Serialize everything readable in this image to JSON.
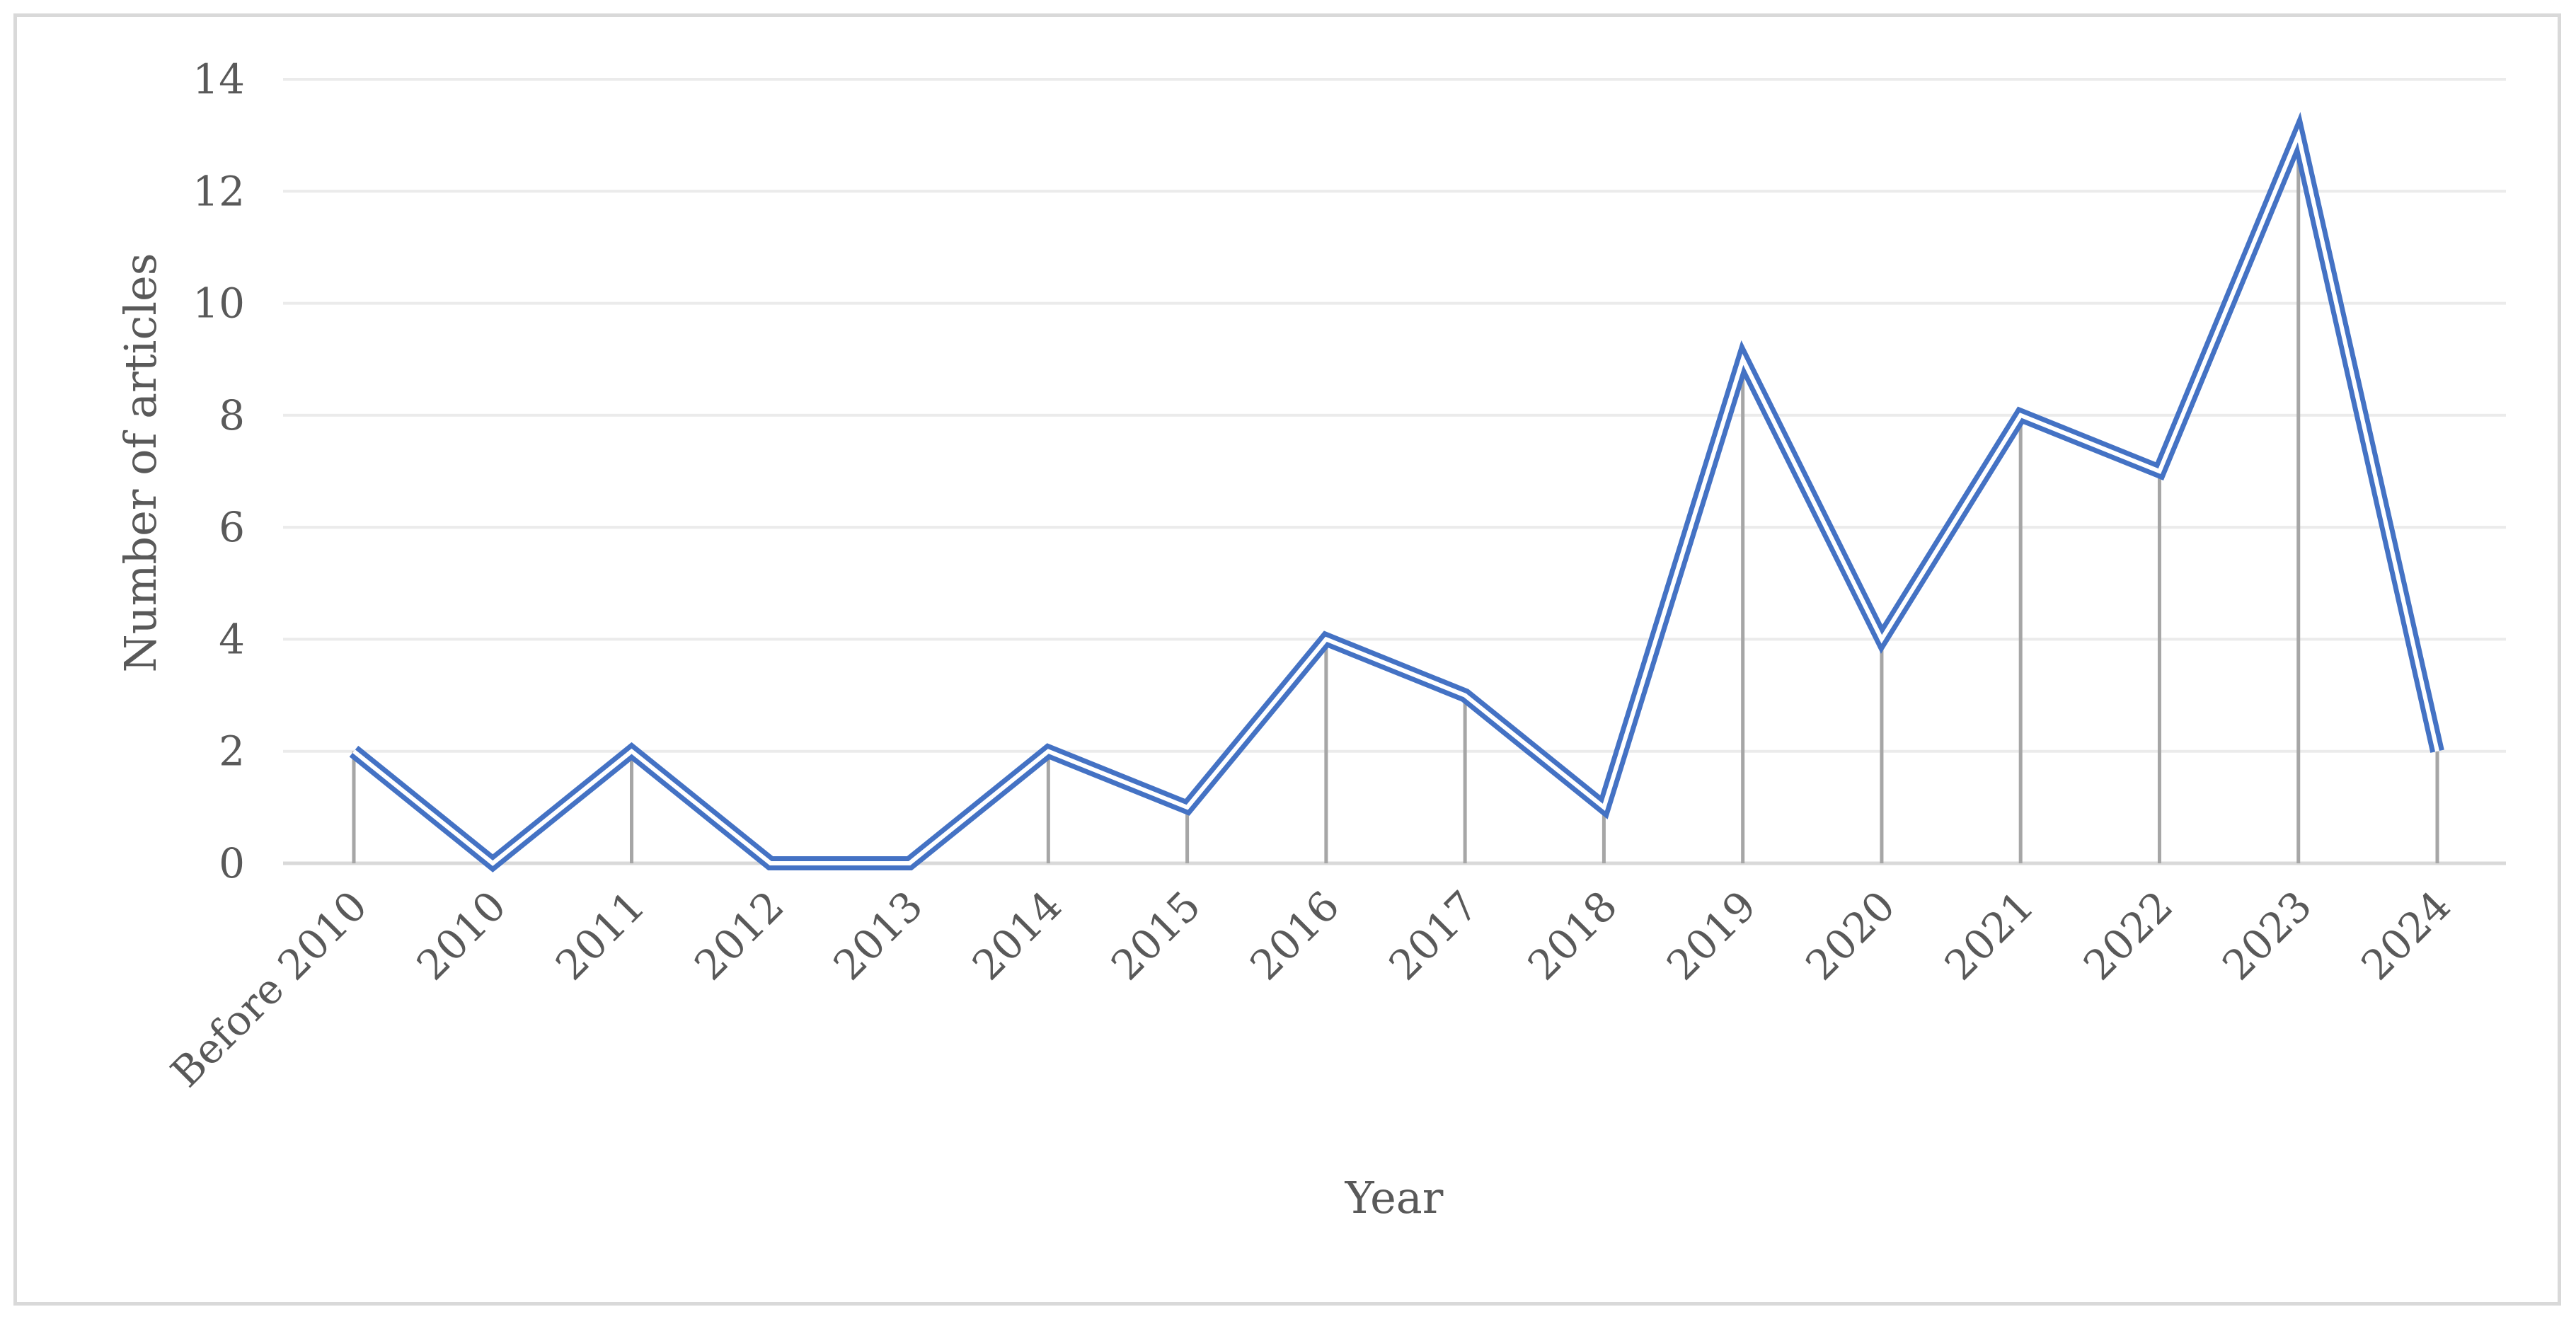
{
  "chart_data": {
    "type": "line",
    "title": "",
    "xlabel": "Year",
    "ylabel": "Number of articles",
    "categories": [
      "Before 2010",
      "2010",
      "2011",
      "2012",
      "2013",
      "2014",
      "2015",
      "2016",
      "2017",
      "2018",
      "2019",
      "2020",
      "2021",
      "2022",
      "2023",
      "2024"
    ],
    "series": [
      {
        "values": [
          2,
          0,
          2,
          0,
          0,
          2,
          1,
          4,
          3,
          1,
          9,
          4,
          8,
          7,
          13,
          2
        ],
        "color": "#4472c4",
        "style": "double-line",
        "drop_lines": true
      }
    ],
    "ylim": [
      0,
      14
    ],
    "yticks": [
      0,
      2,
      4,
      6,
      8,
      10,
      12,
      14
    ],
    "grid": "horizontal",
    "legend": "none",
    "colors": {
      "line": "#4472c4",
      "drop_line": "#a6a6a6",
      "grid": "#ebebeb",
      "axis": "#d9d9d9",
      "text": "#595959",
      "border": "#d9d9d9"
    }
  }
}
